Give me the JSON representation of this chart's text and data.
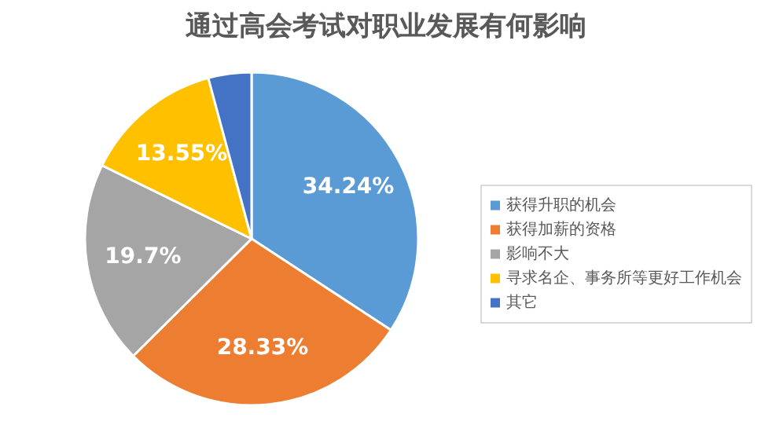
{
  "chart_data": {
    "type": "pie",
    "title": "通过高会考试对职业发展有何影响",
    "categories": [
      "获得升职的机会",
      "获得加薪的资格",
      "影响不大",
      "寻求名企、事务所等更好工作机会",
      "其它"
    ],
    "values": [
      34.24,
      28.33,
      19.7,
      13.55,
      4.18
    ],
    "colors": [
      "#5b9bd5",
      "#ed7d31",
      "#a5a5a5",
      "#ffc000",
      "#4472c4"
    ],
    "value_labels": [
      "34.24%",
      "28.33%",
      "19.7%",
      "13.55%",
      null
    ],
    "legend": "right"
  }
}
